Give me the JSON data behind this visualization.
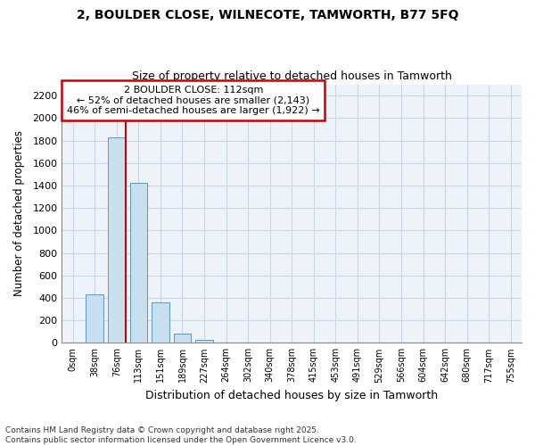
{
  "title": "2, BOULDER CLOSE, WILNECOTE, TAMWORTH, B77 5FQ",
  "subtitle": "Size of property relative to detached houses in Tamworth",
  "xlabel": "Distribution of detached houses by size in Tamworth",
  "ylabel": "Number of detached properties",
  "categories": [
    "0sqm",
    "38sqm",
    "76sqm",
    "113sqm",
    "151sqm",
    "189sqm",
    "227sqm",
    "264sqm",
    "302sqm",
    "340sqm",
    "378sqm",
    "415sqm",
    "453sqm",
    "491sqm",
    "529sqm",
    "566sqm",
    "604sqm",
    "642sqm",
    "680sqm",
    "717sqm",
    "755sqm"
  ],
  "values": [
    0,
    430,
    1830,
    1420,
    360,
    80,
    25,
    5,
    0,
    0,
    0,
    0,
    0,
    0,
    0,
    0,
    0,
    0,
    0,
    0,
    0
  ],
  "bar_color": "#c8dff0",
  "bar_edge_color": "#5599cc",
  "property_line_bar_index": 2,
  "annotation_text1": "2 BOULDER CLOSE: 112sqm",
  "annotation_text2": "← 52% of detached houses are smaller (2,143)",
  "annotation_text3": "46% of semi-detached houses are larger (1,922) →",
  "annotation_box_color": "#ffffff",
  "annotation_box_edge_color": "#cc0000",
  "ylim": [
    0,
    2300
  ],
  "yticks": [
    0,
    200,
    400,
    600,
    800,
    1000,
    1200,
    1400,
    1600,
    1800,
    2000,
    2200
  ],
  "grid_color": "#c8d8e8",
  "background_color": "#ffffff",
  "plot_bg_color": "#eef3fa",
  "footer_line1": "Contains HM Land Registry data © Crown copyright and database right 2025.",
  "footer_line2": "Contains public sector information licensed under the Open Government Licence v3.0."
}
